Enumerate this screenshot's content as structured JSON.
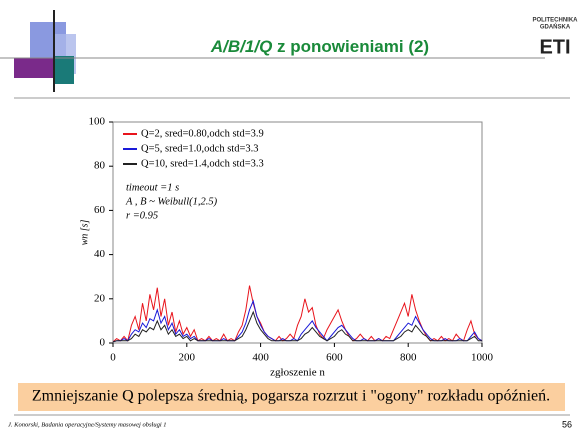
{
  "slide": {
    "title_italic": "A/B/1/Q",
    "title_rest": "z ponowieniami (2)",
    "logo_top": "POLITECHNIKA",
    "logo_mid": "GDAŃSKA",
    "logo_big": "ETI",
    "note": "Zmniejszanie Q polepsza średnią, pogarsza rozrzut i \"ogony\" rozkładu opóźnień.",
    "footer": "J. Konorski, Badania operacyjne/Systemy masowej obsługi 1",
    "page": "56"
  },
  "chart_data": {
    "type": "line",
    "xlabel": "zgłoszenie n",
    "ylabel": "wn [s]",
    "annotations": [
      "timeout =1 s",
      "A , B ~ Weibull(1,2.5)",
      "r =0.95"
    ],
    "xlim": [
      0,
      1000
    ],
    "xticks": [
      0,
      200,
      400,
      600,
      800,
      1000
    ],
    "ylim": [
      0,
      100
    ],
    "yticks": [
      0,
      20,
      40,
      60,
      80,
      100
    ],
    "x": [
      0,
      10,
      20,
      30,
      40,
      50,
      60,
      70,
      80,
      90,
      100,
      110,
      120,
      130,
      140,
      150,
      160,
      170,
      180,
      190,
      200,
      210,
      220,
      230,
      240,
      250,
      260,
      270,
      280,
      290,
      300,
      310,
      320,
      330,
      340,
      350,
      360,
      370,
      380,
      390,
      400,
      410,
      420,
      430,
      440,
      450,
      460,
      470,
      480,
      490,
      500,
      510,
      520,
      530,
      540,
      550,
      560,
      570,
      580,
      590,
      600,
      610,
      620,
      630,
      640,
      650,
      660,
      670,
      680,
      690,
      700,
      710,
      720,
      730,
      740,
      750,
      760,
      770,
      780,
      790,
      800,
      810,
      820,
      830,
      840,
      850,
      860,
      870,
      880,
      890,
      900,
      910,
      920,
      930,
      940,
      950,
      960,
      970,
      980,
      990,
      1000
    ],
    "series": [
      {
        "name": "Q=2, sred=0.80,odch std=3.9",
        "color": "#e8141c",
        "values": [
          0.5,
          2,
          1,
          3,
          1,
          8,
          12,
          6,
          18,
          10,
          22,
          15,
          25,
          12,
          20,
          8,
          14,
          5,
          10,
          4,
          7,
          3,
          6,
          1,
          2,
          1,
          3,
          1,
          2,
          1,
          4,
          1,
          2,
          1,
          5,
          8,
          15,
          26,
          18,
          12,
          9,
          5,
          3,
          2,
          1,
          3,
          1,
          2,
          4,
          2,
          8,
          12,
          20,
          14,
          16,
          8,
          4,
          2,
          6,
          9,
          12,
          15,
          10,
          6,
          3,
          1,
          2,
          4,
          2,
          1,
          3,
          1,
          2,
          1,
          3,
          2,
          6,
          10,
          14,
          18,
          12,
          22,
          15,
          10,
          6,
          3,
          1,
          2,
          1,
          3,
          1,
          2,
          1,
          4,
          2,
          1,
          6,
          10,
          4,
          2,
          1
        ]
      },
      {
        "name": "Q=5, sred=1.0,odch std=3.3",
        "color": "#1a1ad8",
        "values": [
          0.5,
          1,
          1,
          2,
          1,
          4,
          6,
          5,
          9,
          7,
          11,
          10,
          15,
          9,
          12,
          6,
          9,
          4,
          6,
          3,
          4,
          2,
          3,
          1,
          1,
          1,
          2,
          1,
          1,
          1,
          2,
          1,
          1,
          1,
          3,
          5,
          9,
          15,
          19,
          12,
          8,
          5,
          3,
          2,
          1,
          1,
          2,
          1,
          1,
          2,
          1,
          4,
          6,
          8,
          10,
          7,
          5,
          3,
          1,
          3,
          5,
          7,
          8,
          6,
          4,
          2,
          1,
          1,
          2,
          1,
          1,
          1,
          2,
          1,
          1,
          1,
          1,
          3,
          5,
          7,
          9,
          8,
          12,
          9,
          6,
          4,
          2,
          1,
          1,
          1,
          2,
          1,
          1,
          1,
          2,
          1,
          1,
          3,
          5,
          2,
          1
        ]
      },
      {
        "name": "Q=10, sred=1.4,odch std=3.3",
        "color": "#222222",
        "values": [
          0.5,
          1,
          1,
          1,
          1,
          2,
          4,
          3,
          6,
          5,
          7,
          6,
          10,
          6,
          8,
          4,
          6,
          3,
          4,
          2,
          3,
          1,
          2,
          1,
          1,
          1,
          1,
          1,
          1,
          1,
          1,
          1,
          1,
          1,
          2,
          3,
          6,
          10,
          14,
          9,
          6,
          4,
          2,
          1,
          1,
          1,
          1,
          1,
          1,
          1,
          1,
          2,
          4,
          5,
          7,
          5,
          3,
          2,
          1,
          2,
          3,
          5,
          6,
          4,
          3,
          1,
          1,
          1,
          1,
          1,
          1,
          1,
          1,
          1,
          1,
          1,
          1,
          2,
          3,
          5,
          6,
          5,
          8,
          6,
          4,
          3,
          1,
          1,
          1,
          1,
          1,
          1,
          1,
          1,
          1,
          1,
          1,
          2,
          3,
          1,
          1
        ]
      }
    ]
  }
}
